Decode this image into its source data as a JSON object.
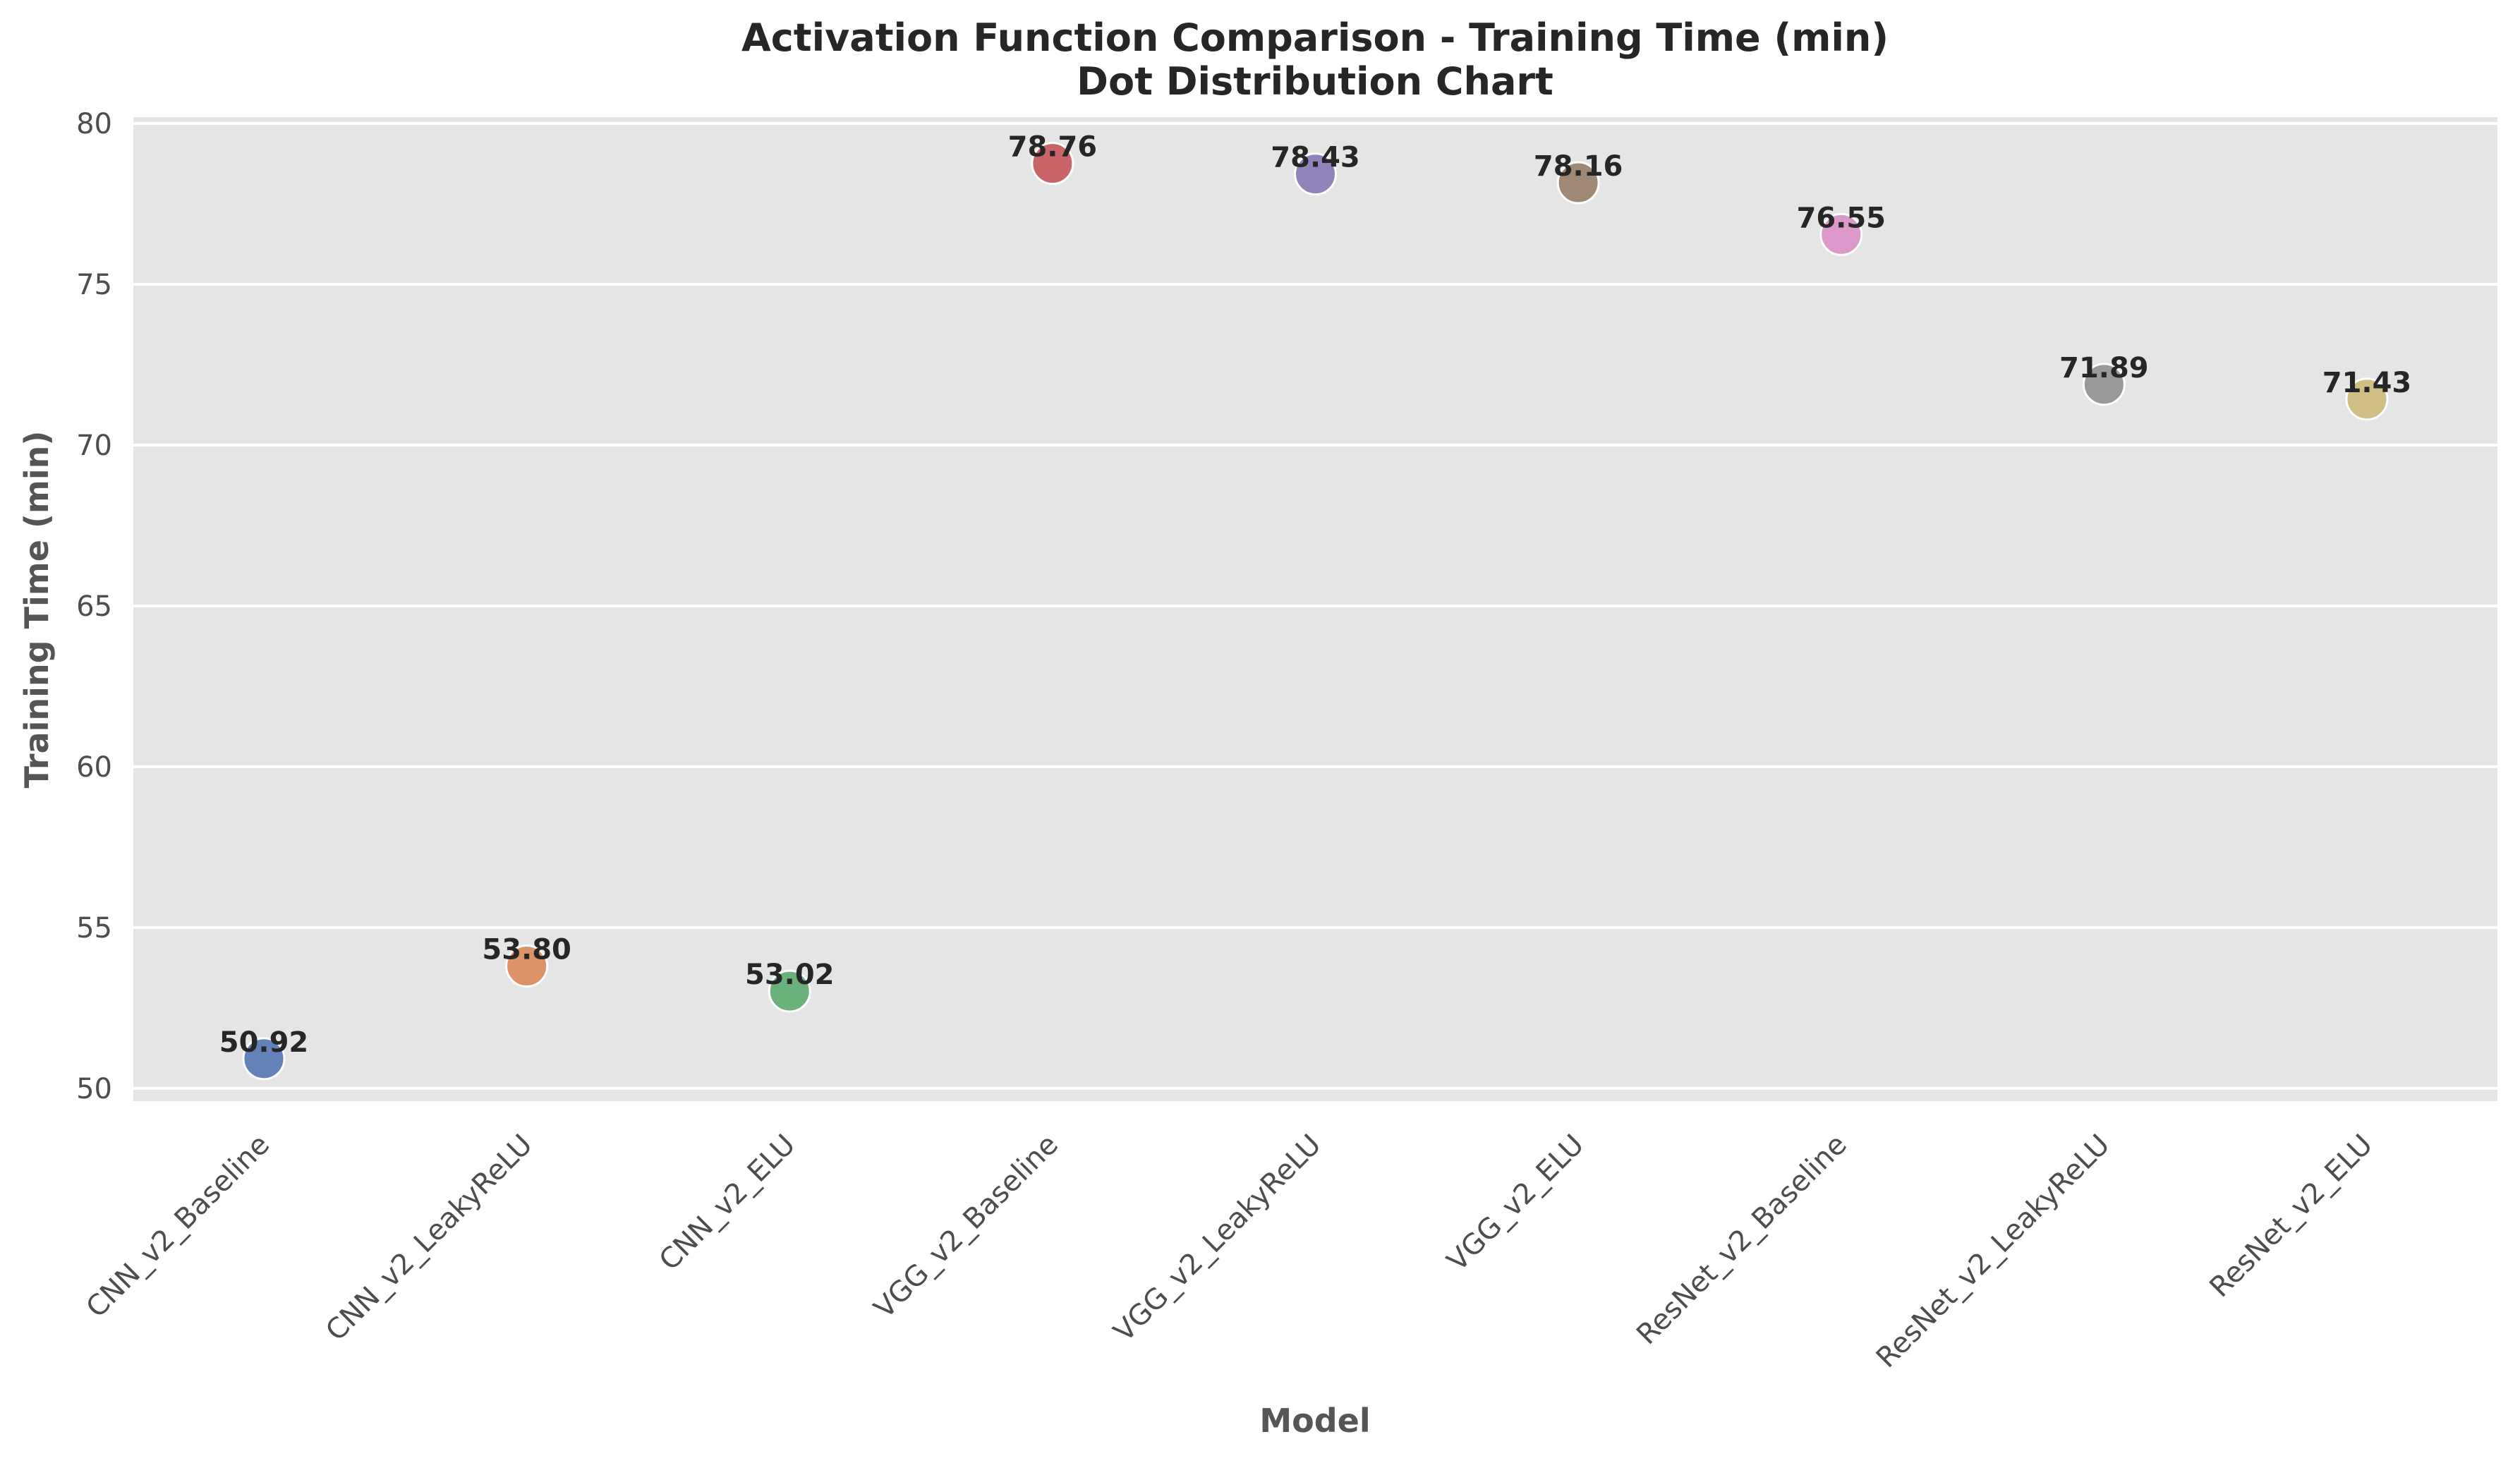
{
  "chart_data": {
    "type": "scatter",
    "title": "Activation Function Comparison - Training Time (min)",
    "subtitle": "Dot Distribution Chart",
    "xlabel": "Model",
    "ylabel": "Training Time (min)",
    "categories": [
      "CNN_v2_Baseline",
      "CNN_v2_LeakyReLU",
      "CNN_v2_ELU",
      "VGG_v2_Baseline",
      "VGG_v2_LeakyReLU",
      "VGG_v2_ELU",
      "ResNet_v2_Baseline",
      "ResNet_v2_LeakyReLU",
      "ResNet_v2_ELU"
    ],
    "values": [
      50.92,
      53.8,
      53.02,
      78.76,
      78.43,
      78.16,
      76.55,
      71.89,
      71.43
    ],
    "data_labels": [
      "50.92",
      "53.80",
      "53.02",
      "78.76",
      "78.43",
      "78.16",
      "76.55",
      "71.89",
      "71.43"
    ],
    "colors": [
      "#4c72b0",
      "#dd8452",
      "#55a868",
      "#c44e52",
      "#8172b3",
      "#937860",
      "#da8bc3",
      "#8c8c8c",
      "#ccb974"
    ],
    "ylim": [
      49.6,
      80.2
    ],
    "yticks": [
      50,
      55,
      60,
      65,
      70,
      75,
      80
    ],
    "ytick_labels": [
      "50",
      "55",
      "60",
      "65",
      "70",
      "75",
      "80"
    ],
    "grid": true,
    "background": "#e5e5e5"
  }
}
